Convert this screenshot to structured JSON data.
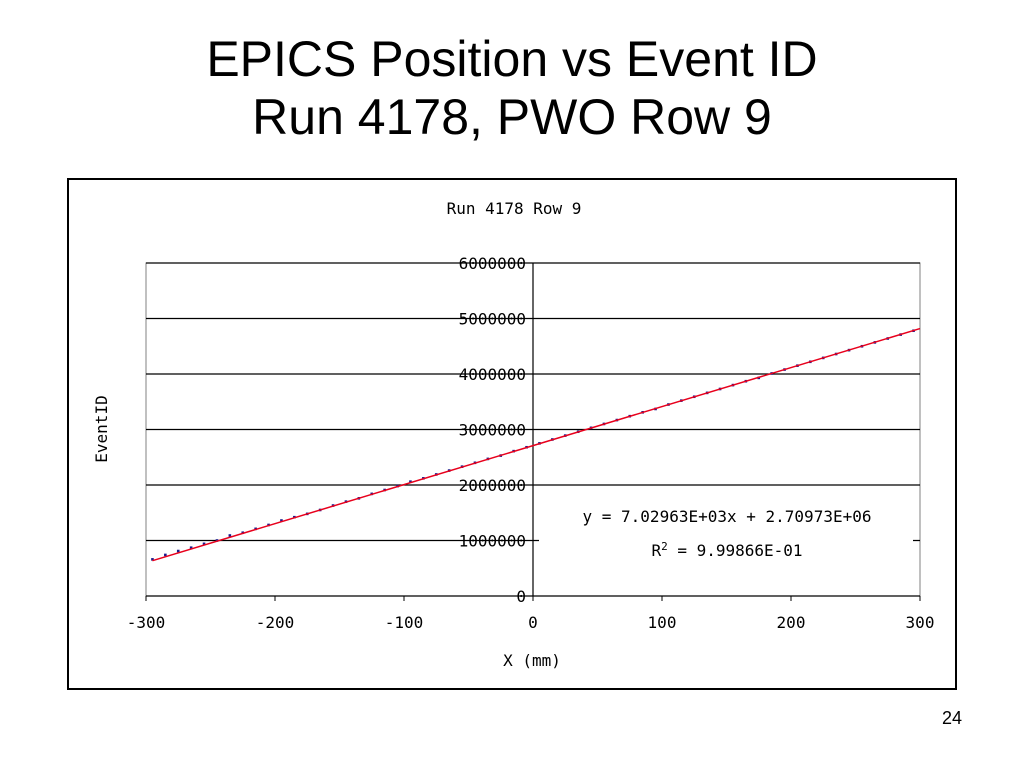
{
  "slide": {
    "title_line1": "EPICS Position vs Event ID",
    "title_line2": "Run 4178, PWO Row 9",
    "page_number": "24"
  },
  "chart_data": {
    "type": "scatter",
    "title": "Run 4178 Row 9",
    "xlabel": "X (mm)",
    "ylabel": "EventID",
    "xlim": [
      -300,
      300
    ],
    "ylim": [
      0,
      6000000
    ],
    "x_ticks": [
      "-300",
      "-200",
      "-100",
      "0",
      "100",
      "200",
      "300"
    ],
    "y_ticks": [
      "0",
      "1000000",
      "2000000",
      "3000000",
      "4000000",
      "5000000",
      "6000000"
    ],
    "grid": true,
    "trendline": {
      "slope": 7029.63,
      "intercept": 2709730,
      "equation": "y = 7.02963E+03x + 2.70973E+06",
      "r2_label": "R",
      "r2_sup": "2",
      "r2_value": " = 9.99866E-01",
      "color": "#e8001c"
    },
    "series": [
      {
        "marker_color": "#1a1a8c",
        "x": [
          -295,
          -285,
          -275,
          -265,
          -255,
          -245,
          -235,
          -225,
          -215,
          -205,
          -195,
          -185,
          -175,
          -165,
          -155,
          -145,
          -135,
          -125,
          -115,
          -105,
          -95,
          -85,
          -75,
          -65,
          -55,
          -45,
          -35,
          -25,
          -15,
          -5,
          5,
          15,
          25,
          35,
          45,
          55,
          65,
          75,
          85,
          95,
          105,
          115,
          125,
          135,
          145,
          155,
          165,
          175,
          185,
          195,
          205,
          215,
          225,
          235,
          245,
          255,
          265,
          275,
          285,
          295
        ],
        "y": [
          660000,
          740000,
          810000,
          870000,
          940000,
          1000000,
          1090000,
          1140000,
          1210000,
          1280000,
          1360000,
          1420000,
          1480000,
          1550000,
          1630000,
          1700000,
          1760000,
          1840000,
          1910000,
          1980000,
          2060000,
          2120000,
          2190000,
          2260000,
          2330000,
          2400000,
          2470000,
          2530000,
          2610000,
          2680000,
          2750000,
          2820000,
          2890000,
          2960000,
          3030000,
          3100000,
          3170000,
          3240000,
          3310000,
          3370000,
          3450000,
          3520000,
          3590000,
          3660000,
          3730000,
          3800000,
          3870000,
          3930000,
          4010000,
          4080000,
          4150000,
          4220000,
          4290000,
          4360000,
          4430000,
          4500000,
          4570000,
          4640000,
          4710000,
          4780000
        ]
      }
    ]
  }
}
